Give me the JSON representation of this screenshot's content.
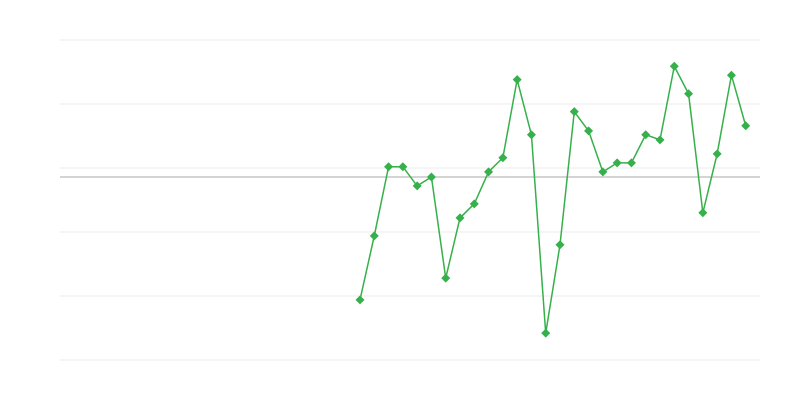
{
  "chart_data": {
    "type": "line",
    "title": "",
    "xlabel": "",
    "ylabel": "",
    "grid": true,
    "legend": "none",
    "x_slots": 50,
    "ylim": [
      0,
      5
    ],
    "baseline": 2.86,
    "line_color": "#35b04a",
    "grid_color": "#ebebeb",
    "baseline_color": "#aaaaaa",
    "marker": "diamond",
    "series": [
      {
        "x": [
          21,
          22,
          23,
          24,
          25,
          26,
          27,
          28,
          29,
          30,
          31,
          32,
          33,
          34,
          35,
          36,
          37,
          38,
          39,
          40,
          41,
          42,
          43,
          44,
          45,
          46,
          47,
          48
        ],
        "values": [
          0.94,
          1.94,
          3.02,
          3.02,
          2.72,
          2.86,
          1.28,
          2.22,
          2.44,
          2.94,
          3.16,
          4.38,
          3.52,
          0.42,
          1.8,
          3.88,
          3.58,
          2.94,
          3.08,
          3.08,
          3.52,
          3.44,
          4.59,
          4.16,
          2.3,
          3.22,
          4.45,
          3.66
        ]
      }
    ]
  }
}
